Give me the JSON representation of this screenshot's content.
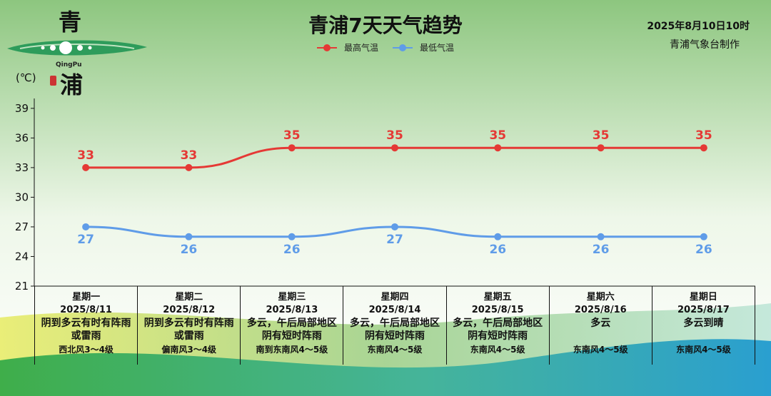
{
  "logo": {
    "char_top": "青",
    "char_bottom": "浦",
    "pinyin": "QingPu"
  },
  "header": {
    "title": "青浦7天天气趋势",
    "timestamp": "2025年8月10日10时",
    "agency": "青浦气象台制作"
  },
  "colors": {
    "high": "#e53935",
    "low": "#5f9ce8"
  },
  "chart_data": {
    "type": "line",
    "ylabel": "(℃)",
    "ylim": [
      21,
      40
    ],
    "yticks": [
      21,
      24,
      27,
      30,
      33,
      36,
      39
    ],
    "grid": false,
    "legend_position": "top-center",
    "categories": [
      "星期一",
      "星期二",
      "星期三",
      "星期四",
      "星期五",
      "星期六",
      "星期日"
    ],
    "series": [
      {
        "name": "最高气温",
        "values": [
          33,
          33,
          35,
          35,
          35,
          35,
          35
        ]
      },
      {
        "name": "最低气温",
        "values": [
          27,
          26,
          26,
          27,
          26,
          26,
          26
        ]
      }
    ]
  },
  "days": [
    {
      "weekday": "星期一",
      "date": "2025/8/11",
      "desc": "阴到多云有时有阵雨或雷雨",
      "wind": "西北风3～4级"
    },
    {
      "weekday": "星期二",
      "date": "2025/8/12",
      "desc": "阴到多云有时有阵雨或雷雨",
      "wind": "偏南风3～4级"
    },
    {
      "weekday": "星期三",
      "date": "2025/8/13",
      "desc": "多云，午后局部地区阴有短时阵雨",
      "wind": "南到东南风4～5级"
    },
    {
      "weekday": "星期四",
      "date": "2025/8/14",
      "desc": "多云，午后局部地区阴有短时阵雨",
      "wind": "东南风4～5级"
    },
    {
      "weekday": "星期五",
      "date": "2025/8/15",
      "desc": "多云，午后局部地区阴有短时阵雨",
      "wind": "东南风4～5级"
    },
    {
      "weekday": "星期六",
      "date": "2025/8/16",
      "desc": "多云",
      "wind": "东南风4～5级"
    },
    {
      "weekday": "星期日",
      "date": "2025/8/17",
      "desc": "多云到晴",
      "wind": "东南风4～5级"
    }
  ]
}
